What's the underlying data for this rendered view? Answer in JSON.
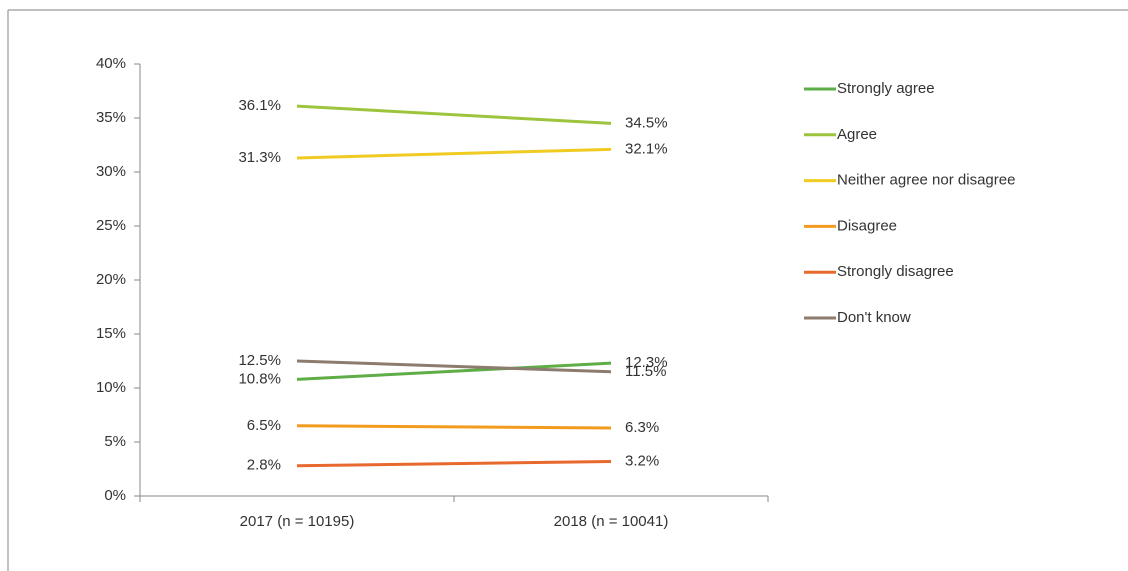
{
  "chart_data": {
    "type": "line",
    "categories": [
      "2017 (n = 10195)",
      "2018 (n = 10041)"
    ],
    "ylim": [
      0,
      40
    ],
    "yticks": [
      {
        "value": 0,
        "label": "0%"
      },
      {
        "value": 5,
        "label": "5%"
      },
      {
        "value": 10,
        "label": "10%"
      },
      {
        "value": 15,
        "label": "15%"
      },
      {
        "value": 20,
        "label": "20%"
      },
      {
        "value": 25,
        "label": "25%"
      },
      {
        "value": 30,
        "label": "30%"
      },
      {
        "value": 35,
        "label": "35%"
      },
      {
        "value": 40,
        "label": "40%"
      }
    ],
    "grid": false,
    "legend": "right",
    "series": [
      {
        "name": "Strongly agree",
        "color": "#5ead46",
        "values": [
          10.8,
          12.3
        ],
        "value_labels": [
          "10.8%",
          "12.3%"
        ]
      },
      {
        "name": "Agree",
        "color": "#9cc43d",
        "values": [
          36.1,
          34.5
        ],
        "value_labels": [
          "36.1%",
          "34.5%"
        ]
      },
      {
        "name": "Neither agree nor disagree",
        "color": "#f0cb22",
        "values": [
          31.3,
          32.1
        ],
        "value_labels": [
          "31.3%",
          "32.1%"
        ]
      },
      {
        "name": "Disagree",
        "color": "#f29c1f",
        "values": [
          6.5,
          6.3
        ],
        "value_labels": [
          "6.5%",
          "6.3%"
        ]
      },
      {
        "name": "Strongly disagree",
        "color": "#e8692d",
        "values": [
          2.8,
          3.2
        ],
        "value_labels": [
          "2.8%",
          "3.2%"
        ]
      },
      {
        "name": "Don't know",
        "color": "#8d7b6e",
        "values": [
          12.5,
          11.5
        ],
        "value_labels": [
          "12.5%",
          "11.5%"
        ]
      }
    ]
  }
}
